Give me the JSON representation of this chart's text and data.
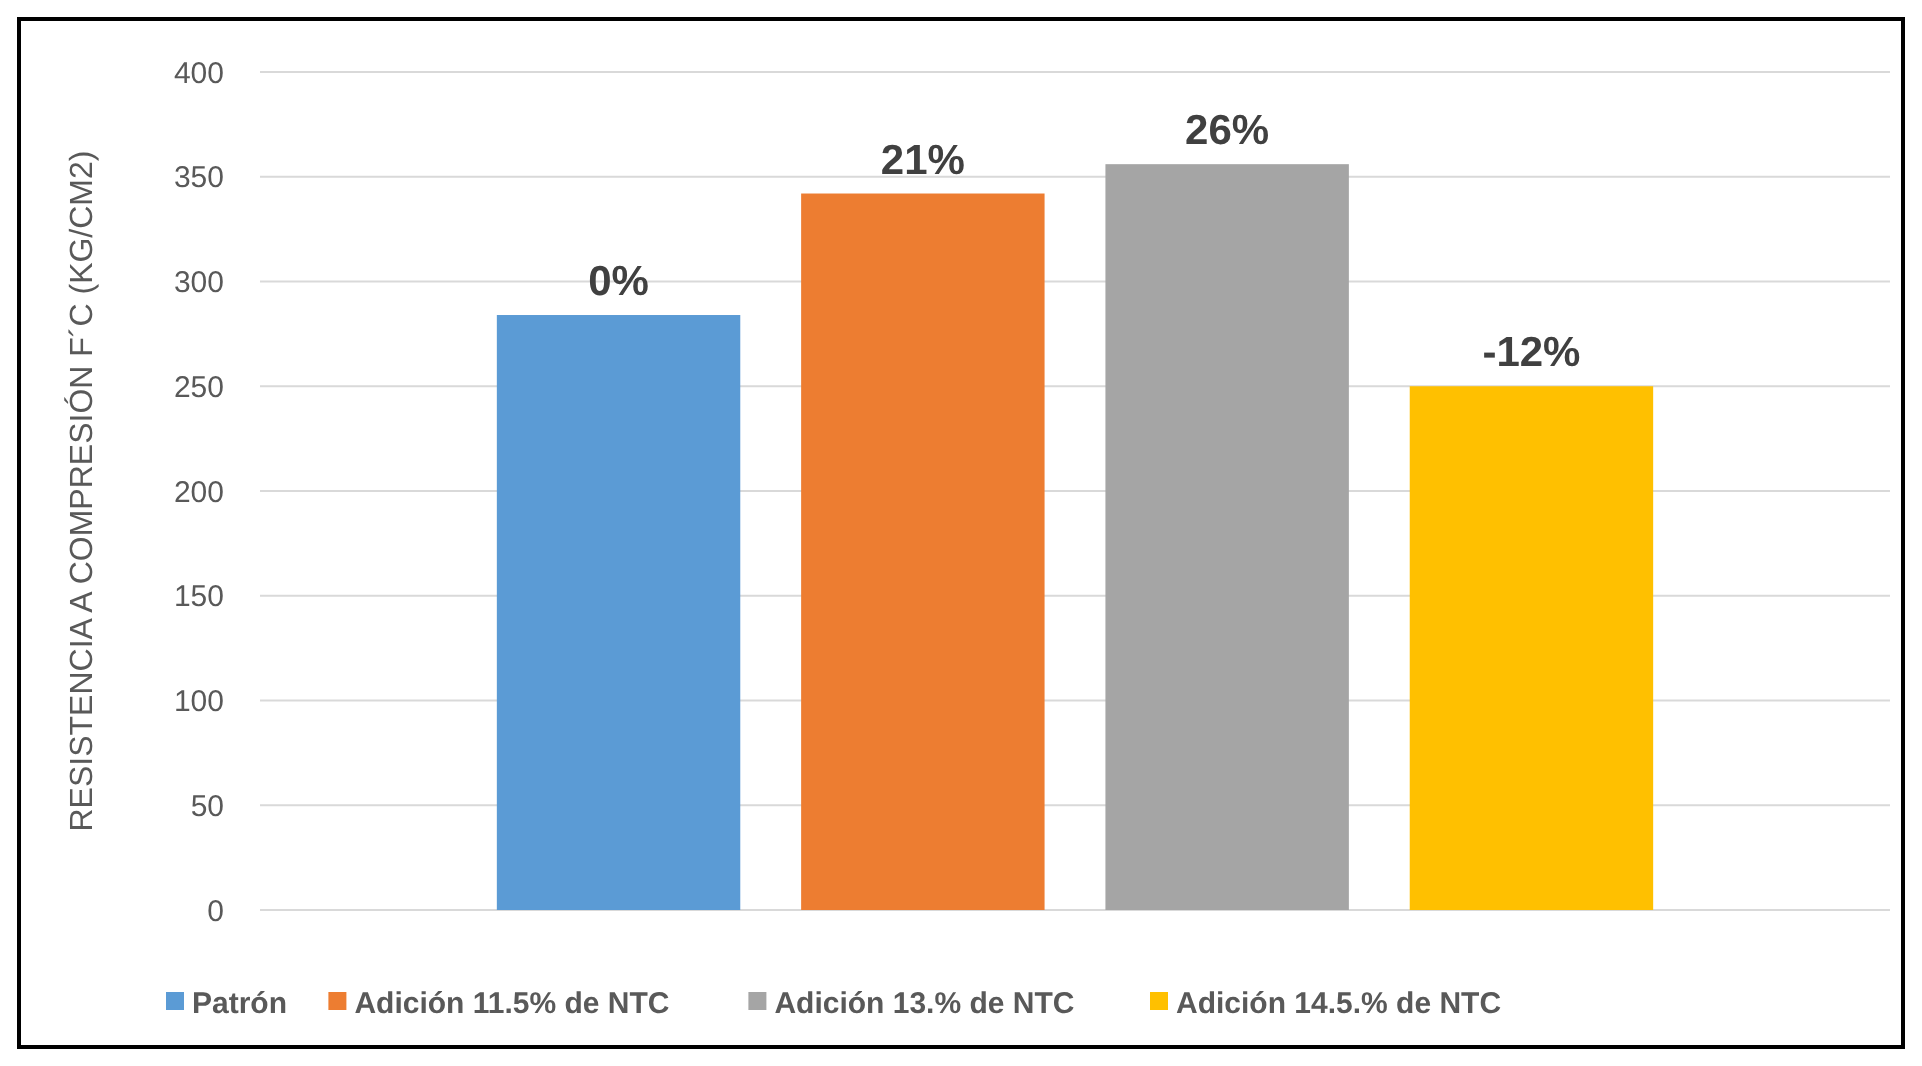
{
  "chart_data": {
    "type": "bar",
    "ylabel": "RESISTENCIA A COMPRESIÓN F´C (KG/CM2)",
    "categories": [
      null
    ],
    "series": [
      {
        "name": "Patrón",
        "color": "#5b9bd5",
        "values": [
          284
        ]
      },
      {
        "name": "Adición 11.5% de NTC",
        "color": "#ed7d31",
        "values": [
          342
        ]
      },
      {
        "name": "Adición 13.% de NTC",
        "color": "#a5a5a5",
        "values": [
          356
        ]
      },
      {
        "name": "Adición 14.5.% de NTC",
        "color": "#ffc000",
        "values": [
          250
        ]
      }
    ],
    "annotations": [
      {
        "text": "0%",
        "y": 284
      },
      {
        "text": "21%",
        "y": 342
      },
      {
        "text": "26%",
        "y": 356
      },
      {
        "text": "-12%",
        "y": 250
      }
    ],
    "ylim": [
      0,
      400
    ],
    "yticks": [
      0,
      50,
      100,
      150,
      200,
      250,
      300,
      350,
      400
    ],
    "grid": "y",
    "legend": "bottom"
  }
}
